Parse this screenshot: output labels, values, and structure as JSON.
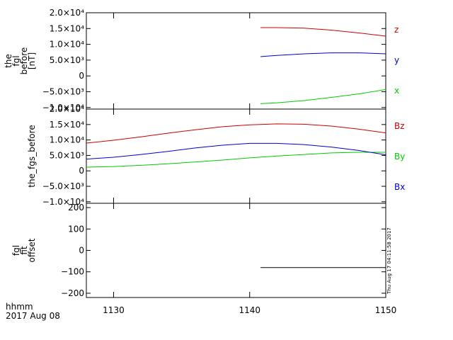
{
  "chart_data": [
    {
      "type": "line",
      "panel": "fgl_before",
      "ylabel": [
        "the",
        "fgl",
        "before",
        "[nT]"
      ],
      "ylim": [
        -10500,
        20000
      ],
      "y_ticks": [
        -10000,
        -5000,
        0,
        5000,
        10000,
        15000,
        20000
      ],
      "y_tick_labels": [
        "−1.0×10⁴",
        "−5.0×10³",
        "0",
        "5.0×10³",
        "1.0×10⁴",
        "1.5×10⁴",
        "2.0×10⁴"
      ],
      "series": [
        {
          "name": "z",
          "color": "#cc0000",
          "x": [
            1140.8,
            1142,
            1144,
            1146,
            1148,
            1150
          ],
          "values": [
            15300,
            15300,
            15100,
            14500,
            13600,
            12600
          ]
        },
        {
          "name": "y",
          "color": "#0000cc",
          "x": [
            1140.8,
            1142,
            1144,
            1146,
            1148,
            1150
          ],
          "values": [
            6100,
            6500,
            7000,
            7300,
            7300,
            7000
          ]
        },
        {
          "name": "x",
          "color": "#00cc00",
          "x": [
            1140.8,
            1142,
            1144,
            1146,
            1148,
            1150
          ],
          "values": [
            -8800,
            -8500,
            -7800,
            -6800,
            -5700,
            -4300
          ]
        }
      ]
    },
    {
      "type": "line",
      "panel": "fgs_before",
      "ylabel": [
        "the_fgs_before"
      ],
      "ylim": [
        -10500,
        20000
      ],
      "y_ticks": [
        -10000,
        -5000,
        0,
        5000,
        10000,
        15000,
        20000
      ],
      "y_tick_labels": [
        "−1.0×10⁴",
        "−5.0×10³",
        "0",
        "5.0×10³",
        "1.0×10⁴",
        "1.5×10⁴",
        "2.0×10⁴"
      ],
      "series": [
        {
          "name": "Bz",
          "color": "#cc0000",
          "x": [
            1128,
            1130,
            1132,
            1134,
            1136,
            1138,
            1140,
            1142,
            1144,
            1146,
            1148,
            1150
          ],
          "values": [
            9000,
            9900,
            11000,
            12200,
            13300,
            14300,
            14900,
            15200,
            15100,
            14500,
            13500,
            12300
          ]
        },
        {
          "name": "By",
          "color": "#00cc00",
          "x": [
            1128,
            1130,
            1132,
            1134,
            1136,
            1138,
            1140,
            1142,
            1144,
            1146,
            1148,
            1150
          ],
          "values": [
            1200,
            1400,
            1800,
            2300,
            2900,
            3500,
            4200,
            4800,
            5300,
            5800,
            6000,
            6000
          ]
        },
        {
          "name": "Bx",
          "color": "#0000cc",
          "x": [
            1128,
            1130,
            1132,
            1134,
            1136,
            1138,
            1140,
            1142,
            1144,
            1146,
            1148,
            1150
          ],
          "values": [
            3800,
            4400,
            5300,
            6300,
            7400,
            8300,
            8900,
            8900,
            8500,
            7700,
            6600,
            5200
          ]
        }
      ]
    },
    {
      "type": "line",
      "panel": "fgl_fit_offset",
      "ylabel": [
        "fgl",
        "fit",
        "offset"
      ],
      "ylim": [
        -220,
        220
      ],
      "y_ticks": [
        -200,
        -100,
        0,
        100,
        200
      ],
      "y_tick_labels": [
        "−200",
        "−100",
        "0",
        "100",
        "200"
      ],
      "series": [
        {
          "name": "",
          "color": "#000000",
          "x": [
            1140.8,
            1150
          ],
          "values": [
            -80,
            -80
          ]
        }
      ]
    }
  ],
  "x_axis": {
    "xlim": [
      1128,
      1150
    ],
    "ticks": [
      1130,
      1140,
      1150
    ],
    "tick_labels": [
      "1130",
      "1140",
      "1150"
    ],
    "label": "hhmm",
    "date": "2017 Aug 08"
  },
  "timestamp": "Thu Aug 17 04:11:58 2017"
}
